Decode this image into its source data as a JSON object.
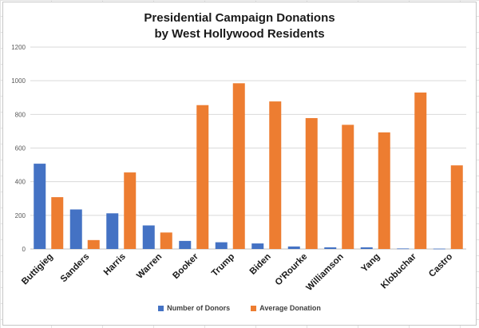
{
  "chart_data": {
    "type": "bar",
    "title_lines": [
      "Presidential Campaign Donations",
      "by West Hollywood Residents"
    ],
    "categories": [
      "Buttigieg",
      "Sanders",
      "Harris",
      "Warren",
      "Booker",
      "Trump",
      "Biden",
      "O'Rourke",
      "Williamson",
      "Yang",
      "Klobuchar",
      "Castro"
    ],
    "series": [
      {
        "name": "Number of Donors",
        "color": "#4472C4",
        "values": [
          507,
          235,
          212,
          140,
          48,
          40,
          33,
          15,
          10,
          10,
          3,
          2
        ]
      },
      {
        "name": "Average Donation",
        "color": "#ED7D31",
        "values": [
          308,
          53,
          455,
          98,
          855,
          985,
          877,
          778,
          738,
          693,
          930,
          497
        ]
      }
    ],
    "ylim": [
      0,
      1200
    ],
    "yticks": [
      0,
      200,
      400,
      600,
      800,
      1000,
      1200
    ],
    "gridlines": true,
    "legend_position": "bottom",
    "xlabel": "",
    "ylabel": ""
  }
}
